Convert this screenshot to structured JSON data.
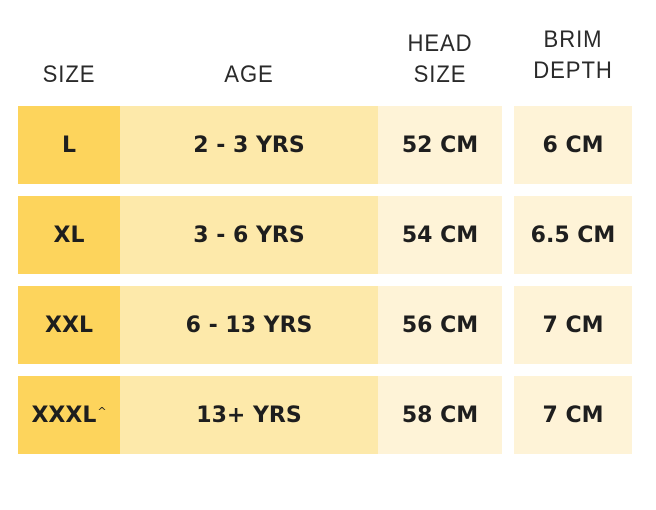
{
  "table": {
    "header": [
      [
        "SIZE"
      ],
      [
        "AGE"
      ],
      [
        "HEAD",
        "SIZE"
      ],
      [
        "BRIM",
        "DEPTH"
      ]
    ],
    "rows": [
      [
        {
          "text": "L"
        },
        "2 - 3 YRS",
        "52 CM",
        "6 CM"
      ],
      [
        {
          "text": "XL"
        },
        "3 - 6 YRS",
        "54 CM",
        "6.5 CM"
      ],
      [
        {
          "text": "XXL"
        },
        "6 - 13 YRS",
        "56 CM",
        "7 CM"
      ],
      [
        {
          "text": "XXXL",
          "sup": "^"
        },
        "13+ YRS",
        "58 CM",
        "7 CM"
      ]
    ]
  }
}
